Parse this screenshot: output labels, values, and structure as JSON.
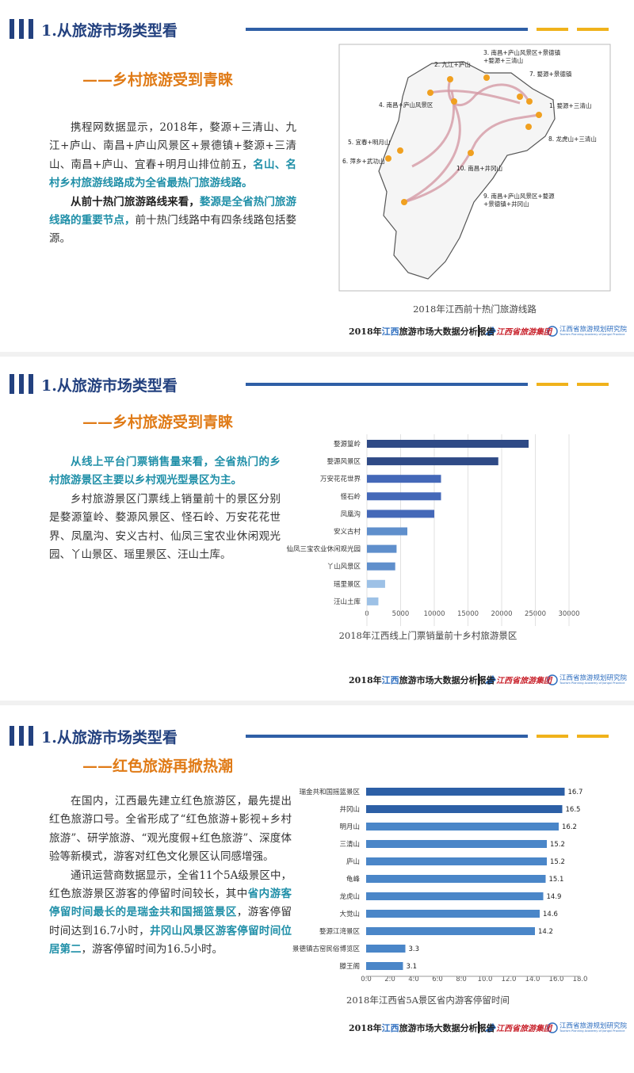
{
  "sections": [
    {
      "heading": "1.从旅游市场类型看",
      "subheading": "——乡村旅游受到青睐",
      "paragraphs": [
        {
          "runs": [
            {
              "text": "携程网数据显示，2018年，婺源+三清山、九江+庐山、南昌+庐山风景区+景德镇+婺源+三清山、南昌+庐山、宜春+明月山排位前五，",
              "style": "plain"
            },
            {
              "text": "名山、名村乡村旅游线路成为全省最热门旅游线路。",
              "style": "accent"
            }
          ]
        },
        {
          "runs": [
            {
              "text": "从前十热门旅游路线来看，",
              "style": "bold"
            },
            {
              "text": "婺源是全省热门旅游线路的重要节点，",
              "style": "accent"
            },
            {
              "text": "前十热门线路中有四条线路包括婺源。",
              "style": "plain"
            }
          ]
        }
      ],
      "map": {
        "caption": "2018年江西前十热门旅游线路",
        "routes": [
          "1. 婺源+三清山",
          "2. 九江+庐山",
          "3. 南昌+庐山风景区+景德镇+婺源+三清山",
          "4. 南昌+庐山风景区",
          "5. 宜春+明月山",
          "6. 萍乡+武功山",
          "7. 婺源+景德镇",
          "8. 龙虎山+三清山",
          "9. 南昌+庐山风景区+婺源+景德镇+井冈山",
          "10. 南昌+井冈山"
        ]
      }
    },
    {
      "heading": "1.从旅游市场类型看",
      "subheading": "——乡村旅游受到青睐",
      "paragraphs": [
        {
          "runs": [
            {
              "text": "从线上平台门票销售量来看，全省热门的乡村旅游景区主要以乡村观光型景区为主。",
              "style": "accent"
            }
          ]
        },
        {
          "runs": [
            {
              "text": "乡村旅游景区门票线上销量前十的景区分别是婺源篁岭、婺源风景区、怪石岭、万安花花世界、凤凰沟、安义古村、仙凤三宝农业休闲观光园、丫山景区、瑶里景区、汪山土库。",
              "style": "plain"
            }
          ]
        }
      ]
    },
    {
      "heading": "1.从旅游市场类型看",
      "subheading": "——红色旅游再掀热潮",
      "paragraphs": [
        {
          "runs": [
            {
              "text": "在国内，江西最先建立红色旅游区，最先提出红色旅游口号。全省形成了“红色旅游+影视+乡村旅游”、研学旅游、“观光度假+红色旅游”、深度体验等新模式，游客对红色文化景区认同感增强。",
              "style": "plain"
            }
          ]
        },
        {
          "runs": [
            {
              "text": "通讯运营商数据显示，全省11个5A级景区中，红色旅游景区游客的停留时间较长，其中",
              "style": "plain"
            },
            {
              "text": "省内游客停留时间最长的是瑞金共和国摇篮景区",
              "style": "accent"
            },
            {
              "text": "，游客停留时间达到16.7小时，",
              "style": "plain"
            },
            {
              "text": "井冈山风景区游客停留时间位居第二",
              "style": "accent"
            },
            {
              "text": "，游客停留时间为16.5小时。",
              "style": "plain"
            }
          ]
        }
      ]
    }
  ],
  "footer": {
    "report": [
      "2018年",
      "江西",
      "旅游市场大数据分析报告"
    ],
    "logo1": "江西省旅游集团",
    "logo2": "江西省旅游规划研究院",
    "logo2_en": "Tourism Planning Academy of Jiangxi Province"
  },
  "chart_data": [
    {
      "type": "hbar",
      "title": "2018年江西线上门票销量前十乡村旅游景区",
      "categories": [
        "婺源篁岭",
        "婺源风景区",
        "万安花花世界",
        "怪石岭",
        "凤凰沟",
        "安义古村",
        "仙凤三宝农业休闲观光园",
        "丫山风景区",
        "瑶里景区",
        "汪山土库"
      ],
      "values": [
        24000,
        19500,
        11000,
        11000,
        10000,
        6000,
        4400,
        4200,
        2700,
        1700
      ],
      "colors": [
        "#2f4a86",
        "#2f4a86",
        "#4468b8",
        "#4468b8",
        "#4468b8",
        "#5f8fcc",
        "#5f8fcc",
        "#5f8fcc",
        "#9dc1e6",
        "#9dc1e6"
      ],
      "xlim": [
        0,
        30000
      ],
      "xticks": [
        0,
        5000,
        10000,
        15000,
        20000,
        25000,
        30000
      ],
      "grid": true,
      "data_labels": false
    },
    {
      "type": "hbar",
      "title": "2018年江西省5A景区省内游客停留时间",
      "categories": [
        "瑞金共和国摇篮景区",
        "井冈山",
        "明月山",
        "三清山",
        "庐山",
        "龟峰",
        "龙虎山",
        "大觉山",
        "婺源江湾景区",
        "景德镇古窑民俗博览区",
        "滕王阁"
      ],
      "values": [
        16.7,
        16.5,
        16.2,
        15.2,
        15.2,
        15.1,
        14.9,
        14.6,
        14.2,
        3.3,
        3.1
      ],
      "colors": [
        "#2c5fa6",
        "#2c5fa6",
        "#4a86c8",
        "#4a86c8",
        "#4a86c8",
        "#4a86c8",
        "#4a86c8",
        "#4a86c8",
        "#4a86c8",
        "#4a86c8",
        "#4a86c8"
      ],
      "xlim": [
        0,
        18
      ],
      "xticks": [
        {
          "value": 0,
          "label": "0.0"
        },
        {
          "value": 2,
          "label": "2.0"
        },
        {
          "value": 4,
          "label": "4.0"
        },
        {
          "value": 6,
          "label": "6.0"
        },
        {
          "value": 8,
          "label": "8.0"
        },
        {
          "value": 10,
          "label": "10.0"
        },
        {
          "value": 12,
          "label": "12.0"
        },
        {
          "value": 14,
          "label": "14.0"
        },
        {
          "value": 16,
          "label": "16.0"
        },
        {
          "value": 18,
          "label": "18.0"
        }
      ],
      "grid": false,
      "data_labels": true
    }
  ]
}
